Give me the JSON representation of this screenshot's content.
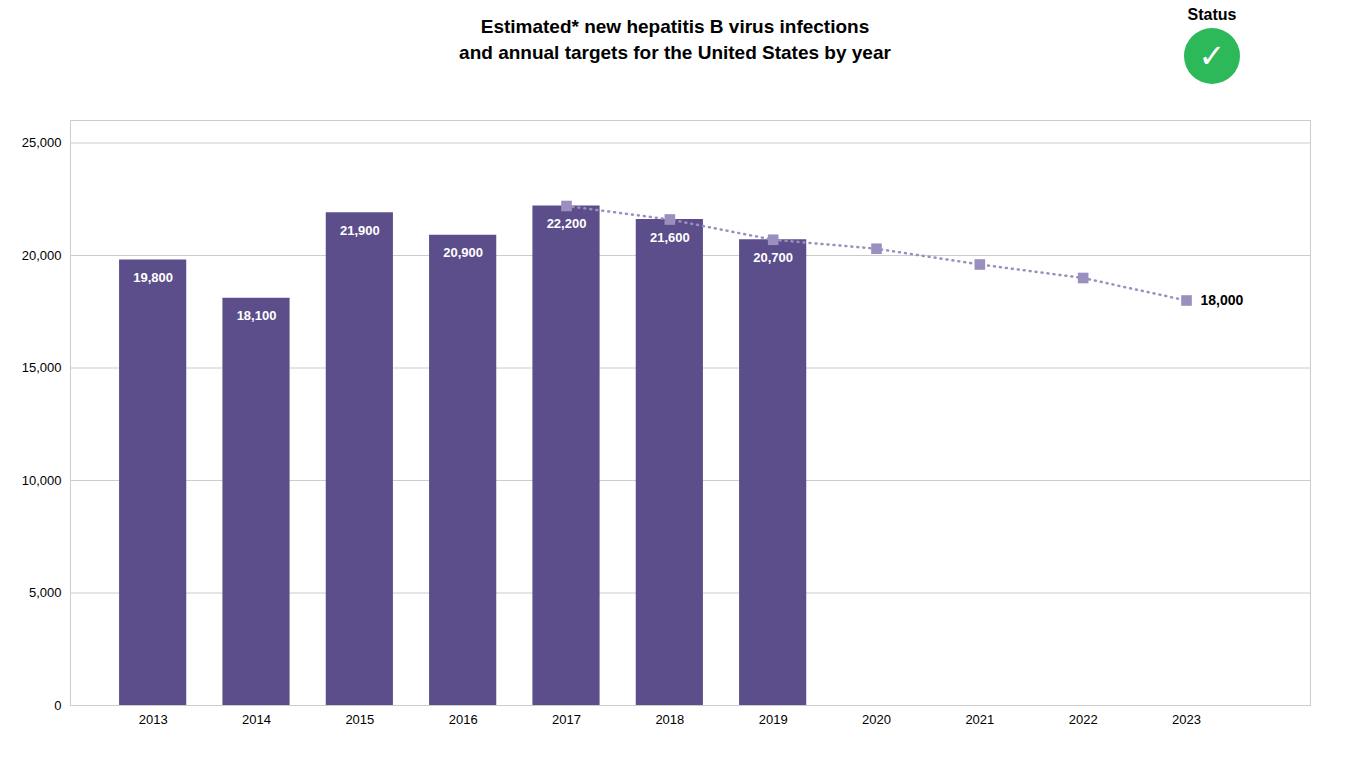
{
  "chart_data": {
    "type": "bar",
    "title": "Estimated* new hepatitis B virus infections\nand annual targets for the United States by year",
    "xlim": [
      2012.2,
      2024.2
    ],
    "xticks": [
      2013,
      2014,
      2015,
      2016,
      2017,
      2018,
      2019,
      2020,
      2021,
      2022,
      2023
    ],
    "ylim": [
      0,
      26000
    ],
    "yticks": [
      0,
      {
        "value": 5000,
        "label": "5,000"
      },
      {
        "value": 10000,
        "label": "10,000"
      },
      {
        "value": 15000,
        "label": "15,000"
      },
      {
        "value": 20000,
        "label": "20,000"
      },
      {
        "value": 25000,
        "label": "25,000"
      }
    ],
    "grid": true,
    "series": [
      {
        "type": "bar",
        "color": "#5c4e8a",
        "x": [
          2013,
          2014,
          2015,
          2016,
          2017,
          2018,
          2019
        ],
        "values": [
          19800,
          18100,
          21900,
          20900,
          22200,
          21600,
          20700
        ],
        "data_labels": true,
        "value_labels": [
          "19,800",
          "18,100",
          "21,900",
          "20,900",
          "22,200",
          "21,600",
          "20,700"
        ]
      },
      {
        "type": "line",
        "color": "#9b8fc0",
        "marker": "square",
        "line_style": "dotted",
        "x": [
          2017,
          2018,
          2019,
          2020,
          2021,
          2022,
          2023
        ],
        "values": [
          22200,
          21600,
          20700,
          20300,
          19600,
          19000,
          18000
        ]
      }
    ],
    "annotations": [
      {
        "text": "18,000",
        "x": 2023,
        "y": 18000
      },
      {
        "text": "Status"
      },
      {
        "text": "✓",
        "color": "#2db85a"
      }
    ]
  }
}
